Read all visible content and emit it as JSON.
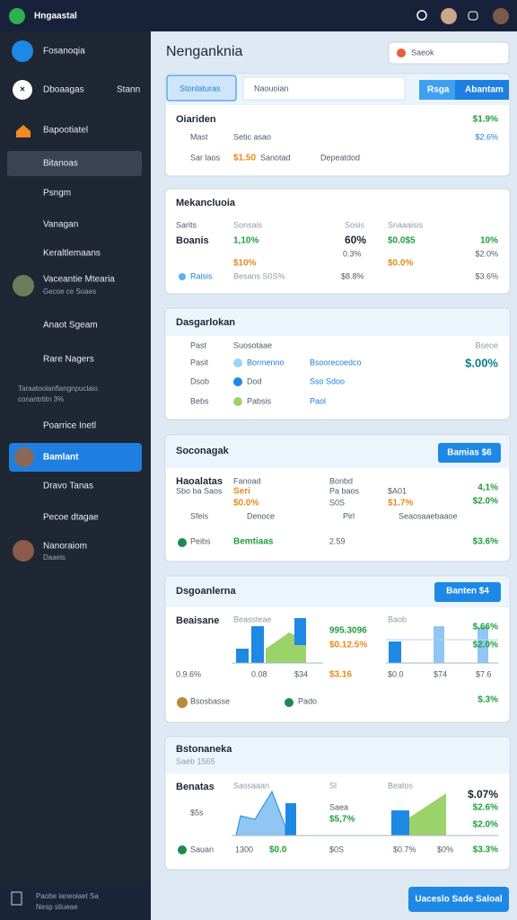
{
  "topbar": {
    "title": "Hngaastal"
  },
  "sidebar": {
    "brand": "Fosanoqia",
    "search": "Dboaagas",
    "search_hint": "Stann",
    "items": [
      "Bapootiatel",
      "Bitanoas",
      "Psngm",
      "Vanagan",
      "Keraltlemaans",
      "Vaceantie Mtearia",
      "Gecoe ce Soaes",
      "Anaot Sgeam",
      "Rare Nagers",
      "Taraatoolanflangnpuclaio",
      "conantrtitn 3%",
      "Poarrice Inetl",
      "Bamlant",
      "Dravo Tanas",
      "Pecoe dtagae",
      "Nanoraiom",
      "Daaeis"
    ],
    "footer": [
      "Paobe laneoiaet Sa",
      "Nesp stiueae"
    ]
  },
  "header": {
    "title": "Nenganknia",
    "search": "Saeok"
  },
  "cards": [
    {
      "title": "Stonlaturas",
      "texts": [
        "Naouoian",
        "Rsga",
        "Abantam",
        "Oiariden",
        "$1.9%",
        "Mast",
        "Setic asao",
        "$2.6%",
        "Sar laos",
        "$1.50",
        "Sanotad",
        "Depeatdod"
      ]
    },
    {
      "title": "Mekancluoia",
      "texts": [
        "Sarits",
        "Sonsais",
        "Sosis",
        "Snaaaisis",
        "Boanis",
        "1,10%",
        "60%",
        "$0.0$5",
        "10%",
        "$10%",
        "0.3%",
        "$0.0%",
        "$2.0%",
        "Raisis",
        "Besans S0S%",
        "$8.8%",
        "$3.6%"
      ]
    },
    {
      "title": "Dasgarlokan",
      "texts": [
        "Past",
        "Suosotaae",
        "Bseoe",
        "Pasit",
        "Bormenno",
        "Bsoorecoedco",
        "$.00%",
        "Dsob",
        "Dod",
        "Sso Sdoo",
        "Bebs",
        "Pabsis",
        "Paol"
      ]
    },
    {
      "title": "Soconagak",
      "texts": [
        "Bamias $6",
        "Haoalatas",
        "Sbo ba Saos",
        "Fanoad",
        "Seri",
        "Bonbd",
        "Pa baos",
        "$A01",
        "4,1%",
        "$0.0%",
        "S0S",
        "$1.7%",
        "$2.0%",
        "Sfeis",
        "Denoce",
        "Pirl",
        "Seaosaaebaaoe",
        "Peibs",
        "Bemtiaas",
        "2.59",
        "$3.6%"
      ]
    },
    {
      "title": "Dsgoanlerna",
      "texts": [
        "Banten $4",
        "Beaisane",
        "Beassteae",
        "995.3096",
        "$0.12.5%",
        "Baob",
        "$.66%",
        "$2.0%",
        "0.9.6%",
        "0.08",
        "$34",
        "$3.16",
        "$0.0",
        "$74",
        "$7.6",
        "Bsosbasse",
        "Pado",
        "$.3%"
      ]
    },
    {
      "title": "Bstonaneka",
      "texts": [
        "Saeb 1565",
        "Benatas",
        "Sassaaan",
        "Sl",
        "Beatos",
        "$.07%",
        "$2.6%",
        "$5s",
        "Saea",
        "$5,7%",
        "$2.0%",
        "Sauan",
        "1300",
        "$0.0",
        "$0S",
        "$0.7%",
        "$0%",
        "$3.3%"
      ]
    }
  ],
  "action": "Uaceslo Sade Saloal"
}
